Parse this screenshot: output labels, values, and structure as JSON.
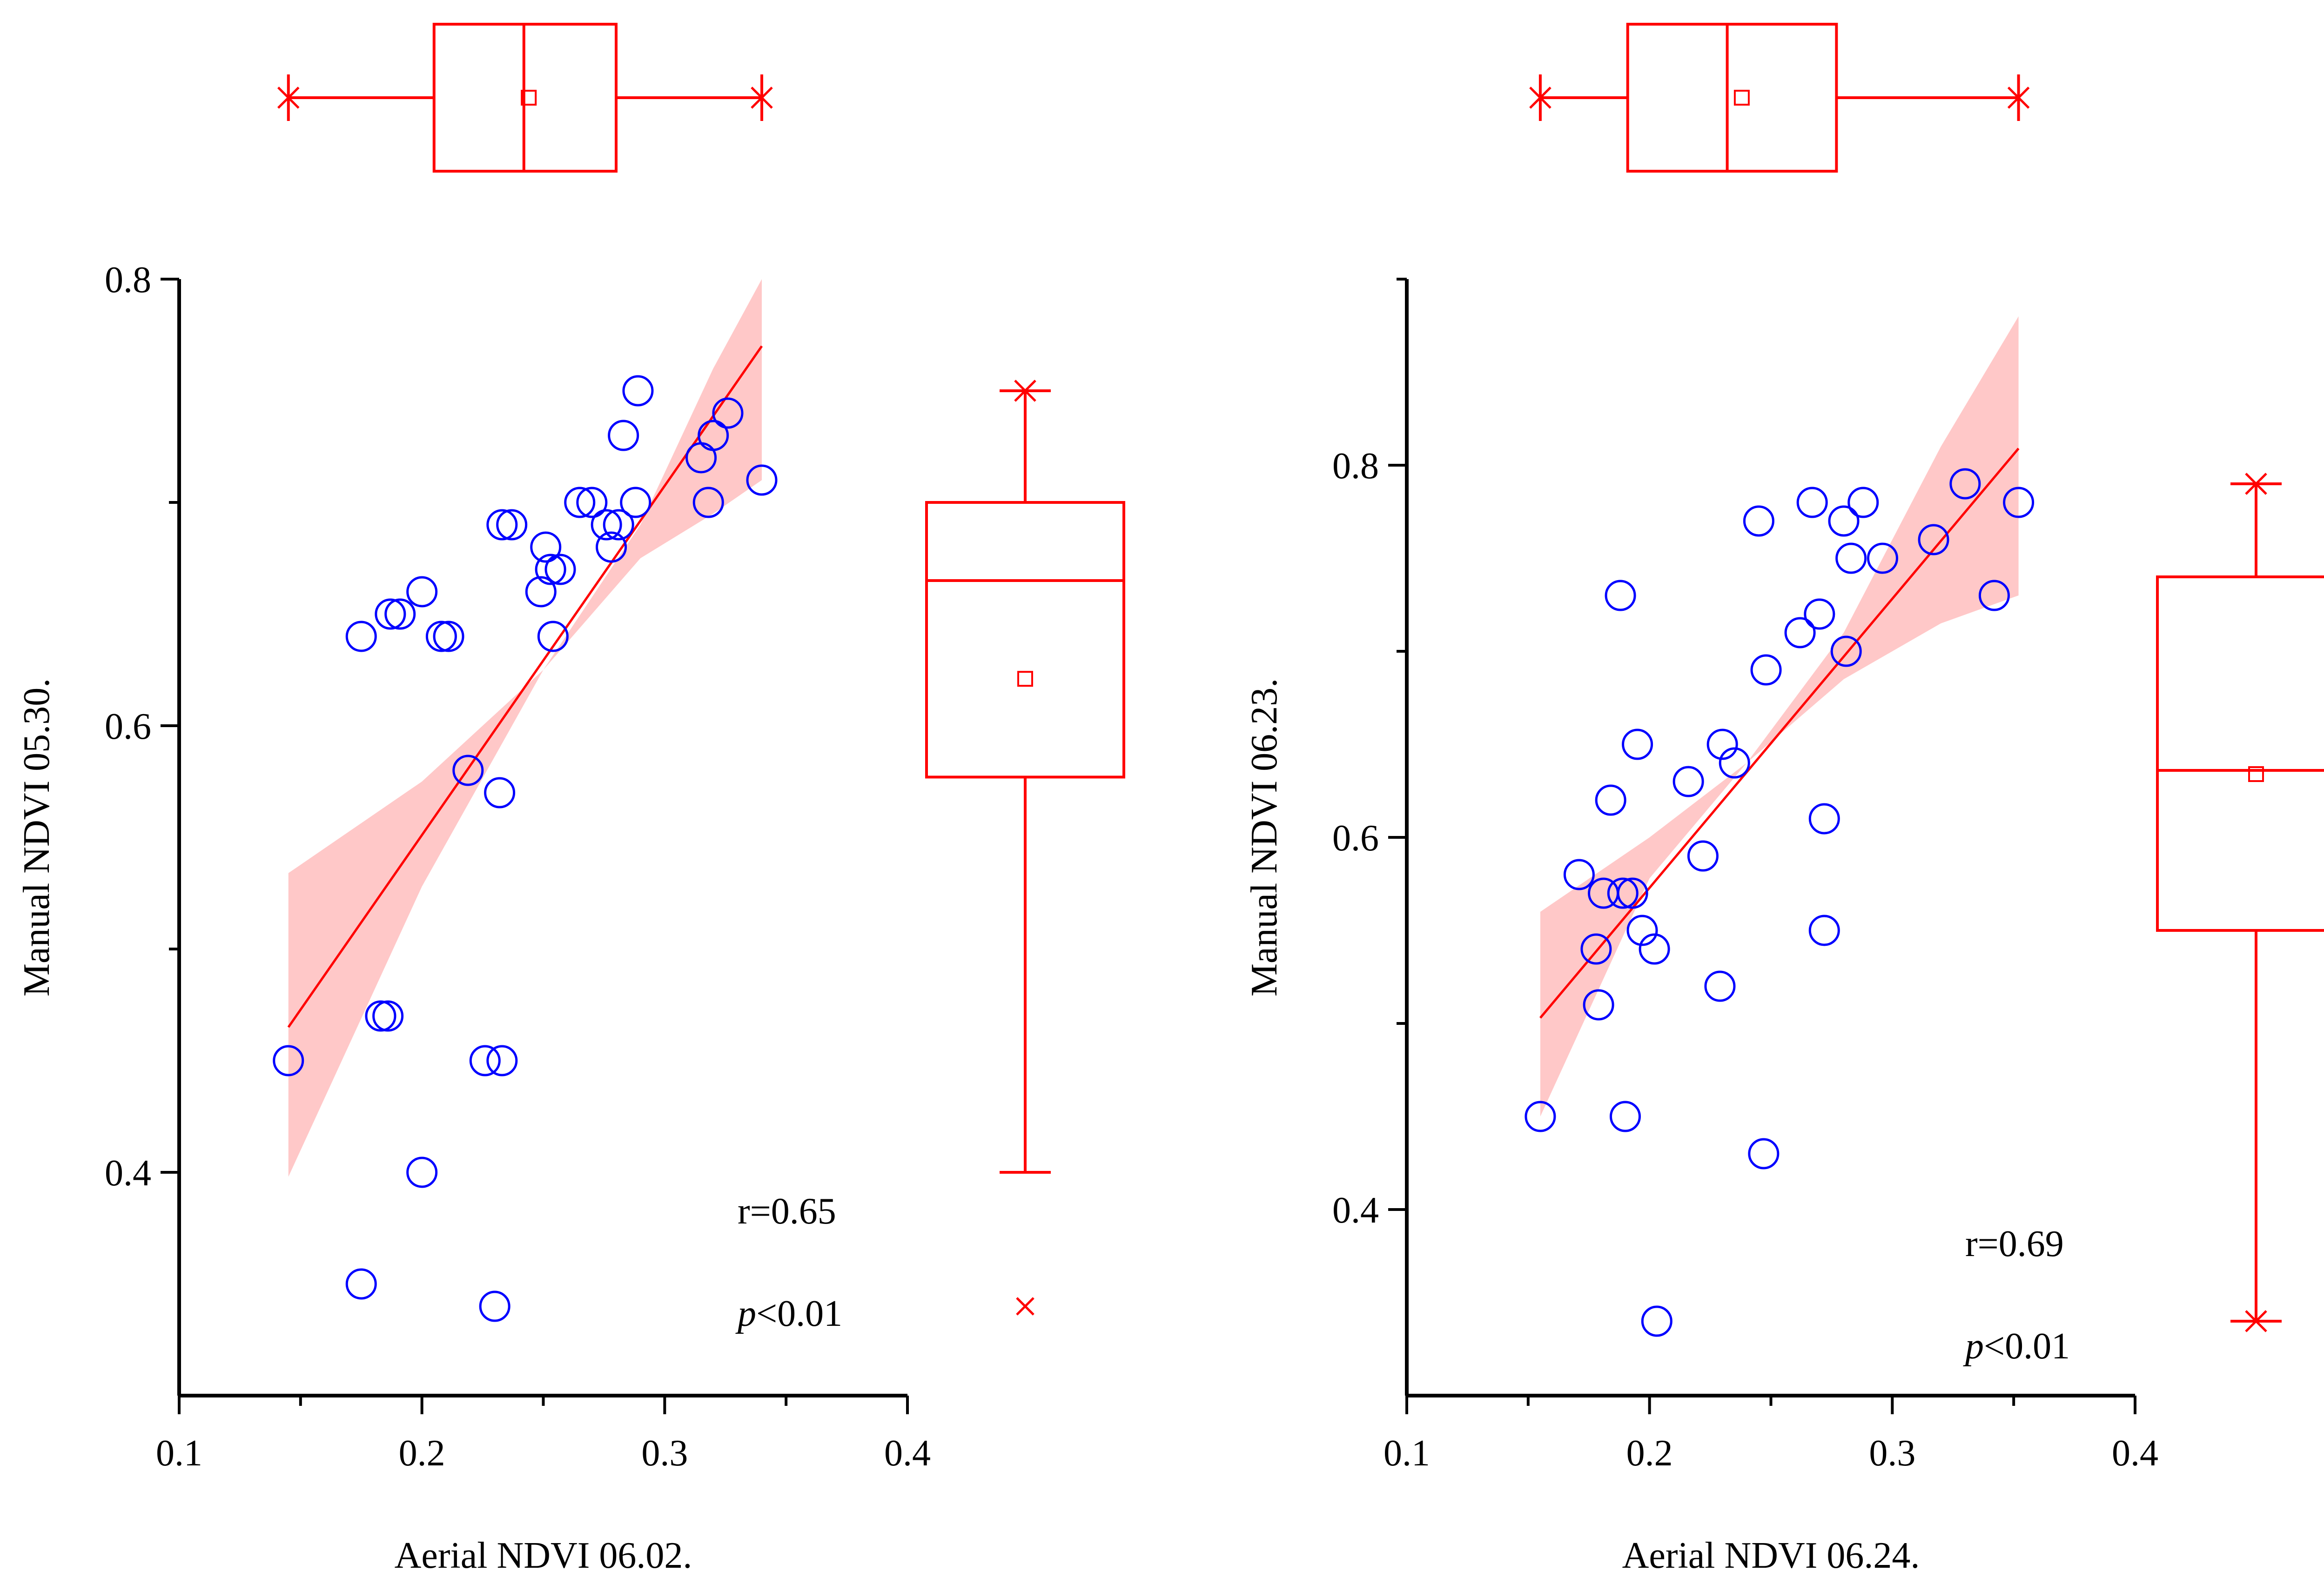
{
  "chart_data": [
    {
      "type": "scatter",
      "xlabel": "Aerial NDVI 06.02.",
      "ylabel": "Manual NDVI 05.30.",
      "xlim": [
        0.1,
        0.4
      ],
      "ylim": [
        0.3,
        0.8
      ],
      "xticks": [
        "0.1",
        "0.2",
        "0.3",
        "0.4"
      ],
      "yticks": [
        "0.4",
        "0.6",
        "0.8"
      ],
      "ytick_values": [
        0.4,
        0.6,
        0.8
      ],
      "minor_yticks": [
        0.5,
        0.7
      ],
      "annotations": {
        "r": "r=0.65",
        "p_italic": "p",
        "p_rest": "<0.01"
      },
      "points": [
        {
          "x": 0.145,
          "y": 0.45
        },
        {
          "x": 0.175,
          "y": 0.64
        },
        {
          "x": 0.175,
          "y": 0.35
        },
        {
          "x": 0.183,
          "y": 0.47
        },
        {
          "x": 0.186,
          "y": 0.47
        },
        {
          "x": 0.187,
          "y": 0.65
        },
        {
          "x": 0.191,
          "y": 0.65
        },
        {
          "x": 0.2,
          "y": 0.66
        },
        {
          "x": 0.2,
          "y": 0.4
        },
        {
          "x": 0.208,
          "y": 0.64
        },
        {
          "x": 0.211,
          "y": 0.64
        },
        {
          "x": 0.219,
          "y": 0.58
        },
        {
          "x": 0.226,
          "y": 0.45
        },
        {
          "x": 0.23,
          "y": 0.34
        },
        {
          "x": 0.232,
          "y": 0.57
        },
        {
          "x": 0.233,
          "y": 0.45
        },
        {
          "x": 0.233,
          "y": 0.69
        },
        {
          "x": 0.237,
          "y": 0.69
        },
        {
          "x": 0.249,
          "y": 0.66
        },
        {
          "x": 0.251,
          "y": 0.68
        },
        {
          "x": 0.253,
          "y": 0.67
        },
        {
          "x": 0.254,
          "y": 0.64
        },
        {
          "x": 0.257,
          "y": 0.67
        },
        {
          "x": 0.265,
          "y": 0.7
        },
        {
          "x": 0.27,
          "y": 0.7
        },
        {
          "x": 0.276,
          "y": 0.69
        },
        {
          "x": 0.278,
          "y": 0.68
        },
        {
          "x": 0.281,
          "y": 0.69
        },
        {
          "x": 0.283,
          "y": 0.73
        },
        {
          "x": 0.288,
          "y": 0.7
        },
        {
          "x": 0.289,
          "y": 0.75
        },
        {
          "x": 0.315,
          "y": 0.72
        },
        {
          "x": 0.318,
          "y": 0.7
        },
        {
          "x": 0.32,
          "y": 0.73
        },
        {
          "x": 0.326,
          "y": 0.74
        },
        {
          "x": 0.34,
          "y": 0.71
        }
      ],
      "fit_line": {
        "x": [
          0.145,
          0.34
        ],
        "y": [
          0.465,
          0.77
        ]
      },
      "confidence_band": {
        "x": [
          0.145,
          0.2,
          0.25,
          0.29,
          0.32,
          0.34
        ],
        "lower": [
          0.398,
          0.528,
          0.625,
          0.675,
          0.695,
          0.71
        ],
        "upper": [
          0.534,
          0.575,
          0.625,
          0.69,
          0.76,
          0.82
        ]
      },
      "x_boxplot": {
        "min": 0.145,
        "q1": 0.205,
        "median": 0.242,
        "q3": 0.28,
        "max": 0.34,
        "mean": 0.244
      },
      "y_boxplot": {
        "min": 0.4,
        "q1": 0.577,
        "median": 0.665,
        "q3": 0.7,
        "max": 0.75,
        "mean": 0.621,
        "outliers": [
          0.34
        ]
      }
    },
    {
      "type": "scatter",
      "xlabel": "Aerial NDVI 06.24.",
      "ylabel": "Manual NDVI 06.23.",
      "xlim": [
        0.1,
        0.4
      ],
      "ylim": [
        0.3,
        0.9
      ],
      "xticks": [
        "0.1",
        "0.2",
        "0.3",
        "0.4"
      ],
      "yticks": [
        "0.4",
        "0.6",
        "0.8"
      ],
      "ytick_values": [
        0.4,
        0.6,
        0.8
      ],
      "minor_yticks": [
        0.5,
        0.7,
        0.9
      ],
      "annotations": {
        "r": "r=0.69",
        "p_italic": "p",
        "p_rest": "<0.01"
      },
      "points": [
        {
          "x": 0.155,
          "y": 0.45
        },
        {
          "x": 0.171,
          "y": 0.58
        },
        {
          "x": 0.178,
          "y": 0.54
        },
        {
          "x": 0.179,
          "y": 0.51
        },
        {
          "x": 0.181,
          "y": 0.57
        },
        {
          "x": 0.184,
          "y": 0.62
        },
        {
          "x": 0.188,
          "y": 0.73
        },
        {
          "x": 0.189,
          "y": 0.57
        },
        {
          "x": 0.19,
          "y": 0.45
        },
        {
          "x": 0.193,
          "y": 0.57
        },
        {
          "x": 0.195,
          "y": 0.65
        },
        {
          "x": 0.197,
          "y": 0.55
        },
        {
          "x": 0.202,
          "y": 0.54
        },
        {
          "x": 0.203,
          "y": 0.34
        },
        {
          "x": 0.216,
          "y": 0.63
        },
        {
          "x": 0.222,
          "y": 0.59
        },
        {
          "x": 0.229,
          "y": 0.52
        },
        {
          "x": 0.23,
          "y": 0.65
        },
        {
          "x": 0.235,
          "y": 0.64
        },
        {
          "x": 0.245,
          "y": 0.77
        },
        {
          "x": 0.247,
          "y": 0.43
        },
        {
          "x": 0.248,
          "y": 0.69
        },
        {
          "x": 0.262,
          "y": 0.71
        },
        {
          "x": 0.267,
          "y": 0.78
        },
        {
          "x": 0.27,
          "y": 0.72
        },
        {
          "x": 0.272,
          "y": 0.61
        },
        {
          "x": 0.272,
          "y": 0.55
        },
        {
          "x": 0.28,
          "y": 0.77
        },
        {
          "x": 0.281,
          "y": 0.7
        },
        {
          "x": 0.283,
          "y": 0.75
        },
        {
          "x": 0.288,
          "y": 0.78
        },
        {
          "x": 0.296,
          "y": 0.75
        },
        {
          "x": 0.317,
          "y": 0.76
        },
        {
          "x": 0.33,
          "y": 0.79
        },
        {
          "x": 0.342,
          "y": 0.73
        },
        {
          "x": 0.352,
          "y": 0.78
        }
      ],
      "fit_line": {
        "x": [
          0.155,
          0.352
        ],
        "y": [
          0.503,
          0.809
        ]
      },
      "confidence_band": {
        "x": [
          0.155,
          0.2,
          0.24,
          0.28,
          0.32,
          0.352
        ],
        "lower": [
          0.45,
          0.578,
          0.64,
          0.685,
          0.715,
          0.73
        ],
        "upper": [
          0.56,
          0.6,
          0.64,
          0.71,
          0.81,
          0.88
        ]
      },
      "x_boxplot": {
        "min": 0.155,
        "q1": 0.191,
        "median": 0.232,
        "q3": 0.277,
        "max": 0.352,
        "mean": 0.238
      },
      "y_boxplot": {
        "min": 0.34,
        "q1": 0.55,
        "median": 0.636,
        "q3": 0.74,
        "max": 0.79,
        "mean": 0.634
      }
    }
  ],
  "colors": {
    "point_stroke": "#0000ff",
    "fit_line": "#ff0000",
    "band_fill": "#ffb6b6",
    "box_stroke": "#ff0000",
    "axis": "#000000"
  }
}
